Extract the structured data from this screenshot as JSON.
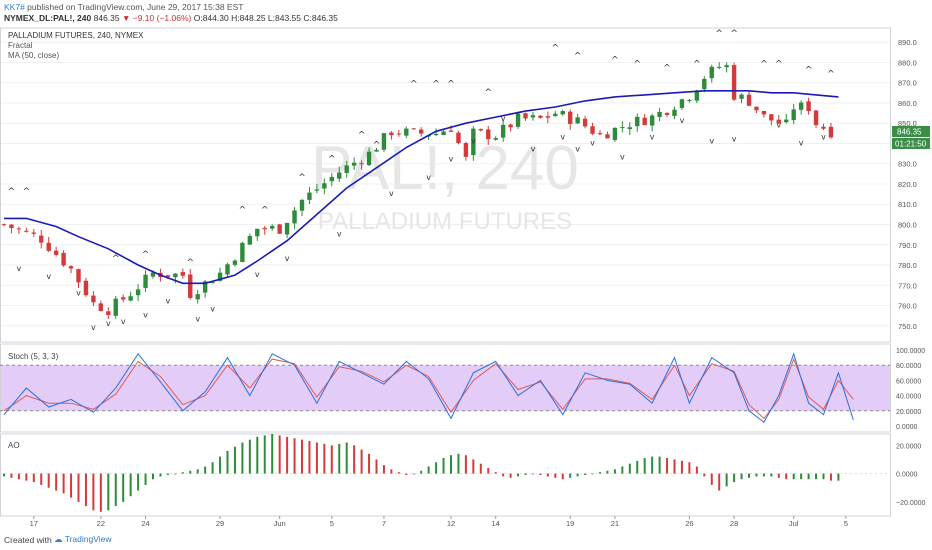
{
  "header": {
    "user": "KK7#",
    "published": "published on TradingView.com, June 29, 2017 15:38 EST",
    "symbol": "NYMEX_DL:PAL!, 240",
    "price": "846.35",
    "change": "▼ −9.10 (−1.06%)",
    "ohlc": "O:844.30 H:848.25 L:843.55 C:846.35"
  },
  "main_panel": {
    "title": "PALLADIUM FUTURES, 240, NYMEX",
    "indicators": [
      "Fractal",
      "MA (50, close)"
    ],
    "watermark_big": "PAL!, 240",
    "watermark_small": "PALLADIUM FUTURES",
    "price_tag": "846.35",
    "time_tag": "01:21:50"
  },
  "stoch_label": "Stoch (5, 3, 3)",
  "ao_label": "AO",
  "footer": {
    "created": "Created with",
    "brand": "TradingView"
  },
  "colors": {
    "up": "#2e8b3c",
    "down": "#d43a3a",
    "ma": "#1a1ab8",
    "stoch_k": "#2b6fde",
    "stoch_d": "#e05a5a",
    "stoch_band": "#e3ccf7",
    "grid": "#eef0f2"
  },
  "chart_data": {
    "type": "candlestick",
    "x_tick_labels": [
      "17",
      "22",
      "24",
      "29",
      "Jun",
      "5",
      "7",
      "12",
      "14",
      "19",
      "21",
      "26",
      "28",
      "Jul",
      "5"
    ],
    "y_ticks": [
      750,
      760,
      770,
      780,
      790,
      800,
      810,
      820,
      830,
      840,
      850,
      860,
      870,
      880,
      890
    ],
    "ylim": [
      742,
      897
    ],
    "close_path": [
      [
        0,
        800
      ],
      [
        5,
        793
      ],
      [
        9,
        778
      ],
      [
        12,
        761
      ],
      [
        14,
        758
      ],
      [
        17,
        766
      ],
      [
        20,
        776
      ],
      [
        24,
        775
      ],
      [
        25,
        766
      ],
      [
        29,
        776
      ],
      [
        34,
        798
      ],
      [
        37,
        798
      ],
      [
        40,
        812
      ],
      [
        45,
        826
      ],
      [
        49,
        835
      ],
      [
        52,
        846
      ],
      [
        55,
        845
      ],
      [
        58,
        845
      ],
      [
        60,
        848
      ],
      [
        62,
        832
      ],
      [
        63,
        845
      ],
      [
        66,
        844
      ],
      [
        69,
        852
      ],
      [
        72,
        852
      ],
      [
        74,
        855
      ],
      [
        77,
        851
      ],
      [
        80,
        844
      ],
      [
        84,
        850
      ],
      [
        87,
        853
      ],
      [
        89,
        857
      ],
      [
        92,
        864
      ],
      [
        94,
        873
      ],
      [
        96,
        878
      ],
      [
        97,
        878
      ],
      [
        98,
        864
      ],
      [
        100,
        861
      ],
      [
        102,
        853
      ],
      [
        105,
        849
      ],
      [
        106,
        858
      ],
      [
        108,
        858
      ],
      [
        109,
        850
      ],
      [
        111,
        846
      ]
    ],
    "ma_path": [
      [
        0,
        803
      ],
      [
        3,
        803
      ],
      [
        7,
        799
      ],
      [
        10,
        794
      ],
      [
        14,
        788
      ],
      [
        18,
        780
      ],
      [
        21,
        775
      ],
      [
        24,
        771
      ],
      [
        27,
        771
      ],
      [
        31,
        775
      ],
      [
        34,
        782
      ],
      [
        38,
        792
      ],
      [
        42,
        805
      ],
      [
        46,
        818
      ],
      [
        50,
        828
      ],
      [
        54,
        838
      ],
      [
        58,
        846
      ],
      [
        62,
        850
      ],
      [
        66,
        853
      ],
      [
        70,
        856
      ],
      [
        74,
        858
      ],
      [
        78,
        861
      ],
      [
        82,
        863
      ],
      [
        86,
        864
      ],
      [
        90,
        865
      ],
      [
        94,
        866
      ],
      [
        97,
        866
      ],
      [
        100,
        866
      ],
      [
        103,
        865
      ],
      [
        106,
        865
      ],
      [
        109,
        864
      ],
      [
        112,
        863
      ]
    ],
    "fractals_up": [
      [
        1,
        815
      ],
      [
        3,
        815
      ],
      [
        15,
        782
      ],
      [
        19,
        784
      ],
      [
        25,
        780
      ],
      [
        32,
        806
      ],
      [
        35,
        806
      ],
      [
        40,
        822
      ],
      [
        44,
        831
      ],
      [
        48,
        843
      ],
      [
        50,
        838
      ],
      [
        55,
        868
      ],
      [
        58,
        868
      ],
      [
        60,
        868
      ],
      [
        65,
        864
      ],
      [
        70,
        897
      ],
      [
        74,
        886
      ],
      [
        77,
        882
      ],
      [
        82,
        880
      ],
      [
        85,
        878
      ],
      [
        89,
        876
      ],
      [
        93,
        878
      ],
      [
        96,
        893
      ],
      [
        98,
        893
      ],
      [
        102,
        878
      ],
      [
        104,
        878
      ],
      [
        108,
        875
      ],
      [
        111,
        873
      ]
    ],
    "fractals_down": [
      [
        2,
        777
      ],
      [
        6,
        773
      ],
      [
        10,
        765
      ],
      [
        12,
        748
      ],
      [
        14,
        750
      ],
      [
        16,
        751
      ],
      [
        19,
        754
      ],
      [
        22,
        761
      ],
      [
        26,
        752
      ],
      [
        28,
        757
      ],
      [
        34,
        774
      ],
      [
        38,
        782
      ],
      [
        45,
        794
      ],
      [
        52,
        814
      ],
      [
        57,
        822
      ],
      [
        60,
        831
      ],
      [
        63,
        840
      ],
      [
        67,
        851
      ],
      [
        71,
        836
      ],
      [
        75,
        842
      ],
      [
        77,
        836
      ],
      [
        79,
        839
      ],
      [
        83,
        832
      ],
      [
        87,
        842
      ],
      [
        91,
        850
      ],
      [
        95,
        840
      ],
      [
        98,
        841
      ],
      [
        104,
        848
      ],
      [
        107,
        839
      ],
      [
        110,
        842
      ]
    ],
    "stoch_levels": [
      0,
      20,
      40,
      60,
      80,
      100
    ],
    "stoch_band": [
      20,
      80
    ],
    "stoch_k_path": [
      [
        0,
        15
      ],
      [
        3,
        50
      ],
      [
        6,
        25
      ],
      [
        9,
        35
      ],
      [
        12,
        18
      ],
      [
        15,
        50
      ],
      [
        18,
        95
      ],
      [
        21,
        58
      ],
      [
        24,
        20
      ],
      [
        27,
        45
      ],
      [
        30,
        90
      ],
      [
        33,
        40
      ],
      [
        36,
        95
      ],
      [
        39,
        80
      ],
      [
        42,
        30
      ],
      [
        45,
        85
      ],
      [
        48,
        70
      ],
      [
        51,
        55
      ],
      [
        54,
        85
      ],
      [
        57,
        62
      ],
      [
        60,
        10
      ],
      [
        63,
        70
      ],
      [
        66,
        85
      ],
      [
        69,
        40
      ],
      [
        72,
        60
      ],
      [
        75,
        15
      ],
      [
        78,
        70
      ],
      [
        81,
        60
      ],
      [
        84,
        55
      ],
      [
        87,
        30
      ],
      [
        90,
        90
      ],
      [
        92,
        30
      ],
      [
        95,
        90
      ],
      [
        98,
        70
      ],
      [
        100,
        20
      ],
      [
        102,
        5
      ],
      [
        104,
        40
      ],
      [
        106,
        95
      ],
      [
        108,
        30
      ],
      [
        110,
        15
      ],
      [
        112,
        70
      ],
      [
        114,
        8
      ]
    ],
    "stoch_d_path": [
      [
        0,
        20
      ],
      [
        3,
        40
      ],
      [
        6,
        30
      ],
      [
        9,
        30
      ],
      [
        12,
        22
      ],
      [
        15,
        42
      ],
      [
        18,
        85
      ],
      [
        21,
        65
      ],
      [
        24,
        28
      ],
      [
        27,
        40
      ],
      [
        30,
        80
      ],
      [
        33,
        50
      ],
      [
        36,
        88
      ],
      [
        39,
        82
      ],
      [
        42,
        38
      ],
      [
        45,
        78
      ],
      [
        48,
        72
      ],
      [
        51,
        58
      ],
      [
        54,
        80
      ],
      [
        57,
        65
      ],
      [
        60,
        18
      ],
      [
        63,
        60
      ],
      [
        66,
        82
      ],
      [
        69,
        48
      ],
      [
        72,
        58
      ],
      [
        75,
        22
      ],
      [
        78,
        62
      ],
      [
        81,
        62
      ],
      [
        84,
        56
      ],
      [
        87,
        35
      ],
      [
        90,
        80
      ],
      [
        92,
        40
      ],
      [
        95,
        82
      ],
      [
        98,
        72
      ],
      [
        100,
        28
      ],
      [
        102,
        10
      ],
      [
        104,
        35
      ],
      [
        106,
        88
      ],
      [
        108,
        38
      ],
      [
        110,
        22
      ],
      [
        112,
        60
      ],
      [
        114,
        35
      ]
    ],
    "ao_ticks": [
      20,
      0,
      -20
    ],
    "ao_ylim": [
      -30,
      28
    ],
    "ao_values": [
      -2,
      -3,
      -4,
      -5,
      -6,
      -8,
      -10,
      -12,
      -14,
      -17,
      -20,
      -23,
      -26,
      -27,
      -26,
      -23,
      -20,
      -16,
      -12,
      -8,
      -4,
      -2,
      -1,
      0,
      1,
      2,
      3,
      5,
      8,
      12,
      16,
      19,
      22,
      24,
      26,
      27,
      28,
      27,
      26,
      25,
      24,
      23,
      22,
      21,
      20,
      21,
      22,
      20,
      17,
      14,
      10,
      6,
      3,
      1,
      -1,
      0,
      2,
      5,
      8,
      11,
      13,
      14,
      13,
      10,
      7,
      4,
      1,
      -2,
      -3,
      -2,
      -1,
      0,
      -1,
      -2,
      -3,
      -4,
      -3,
      -2,
      -1,
      0,
      1,
      2,
      3,
      5,
      7,
      9,
      11,
      12,
      12,
      11,
      10,
      9,
      8,
      5,
      -2,
      -8,
      -12,
      -9,
      -6,
      -4,
      -3,
      -2,
      -2,
      -2,
      -3,
      -4,
      -4,
      -4,
      -4,
      -4,
      -4,
      -5,
      -5
    ]
  }
}
